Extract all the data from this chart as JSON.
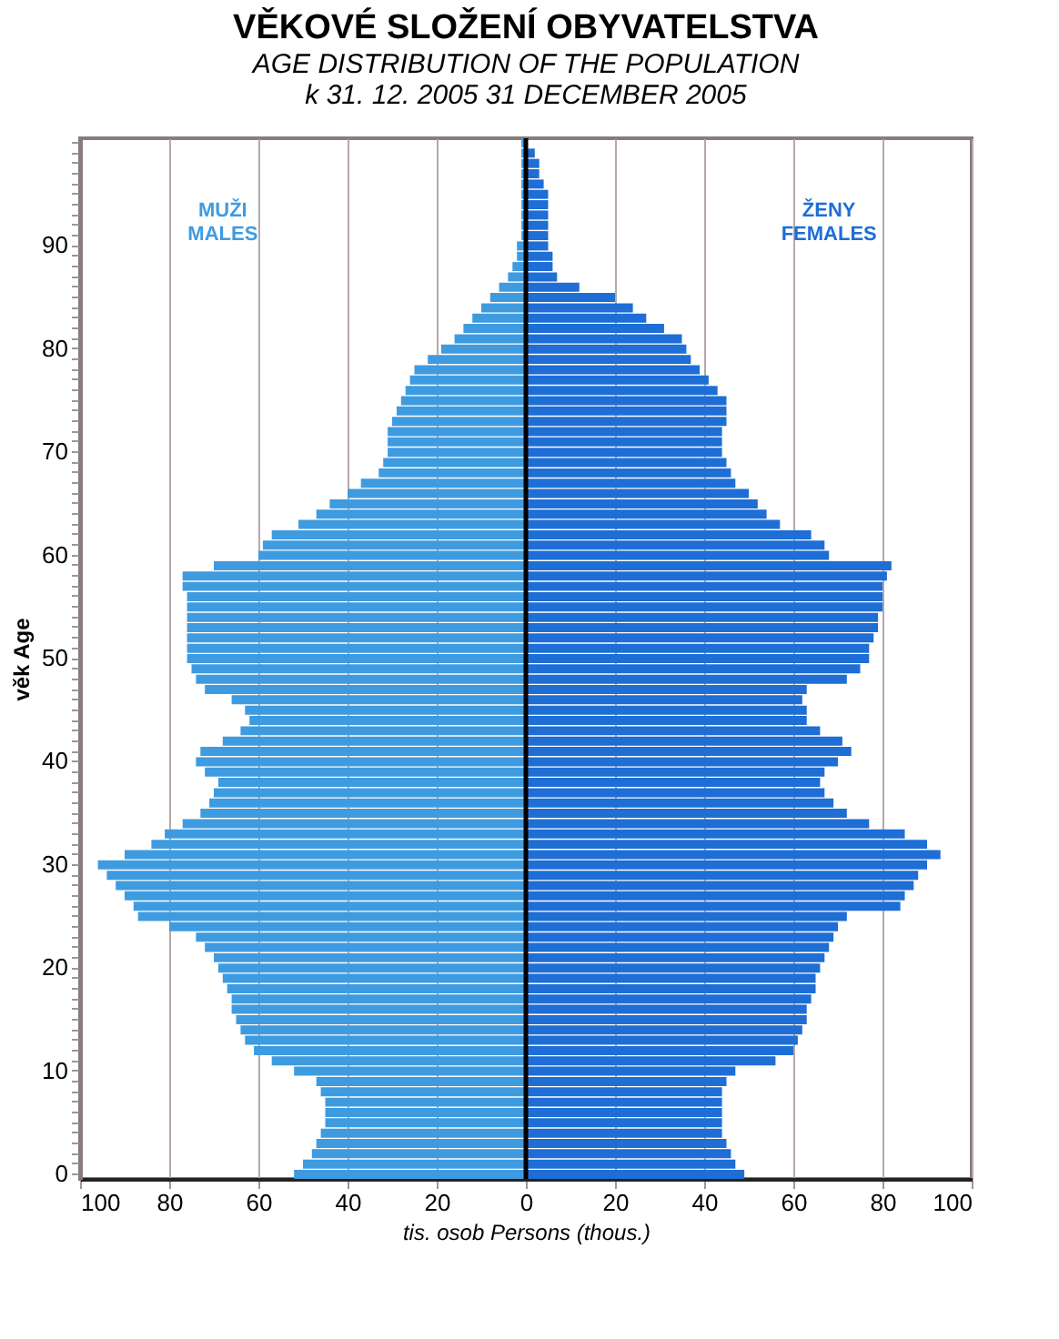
{
  "chart_data": {
    "type": "bar",
    "orientation": "horizontal",
    "title": "VĚKOVÉ SLOŽENÍ OBYVATELSTVA",
    "subtitle": "AGE DISTRIBUTION OF THE POPULATION\nk 31. 12. 2005      31 DECEMBER 2005",
    "xlabel": "tis. osob     Persons (thous.)",
    "ylabel": "věk     Age",
    "stacked": true,
    "categories": [
      null,
      null,
      null,
      null,
      null,
      null,
      null,
      null,
      null,
      null,
      "90",
      null,
      null,
      null,
      null,
      null,
      null,
      null,
      null,
      null,
      "80",
      null,
      null,
      null,
      null,
      null,
      null,
      null,
      null,
      null,
      "70",
      null,
      null,
      null,
      null,
      null,
      null,
      null,
      null,
      null,
      "60",
      null,
      null,
      null,
      null,
      null,
      null,
      null,
      null,
      null,
      "50",
      null,
      null,
      null,
      null,
      null,
      null,
      null,
      null,
      null,
      "40",
      null,
      null,
      null,
      null,
      null,
      null,
      null,
      null,
      null,
      "30",
      null,
      null,
      null,
      null,
      null,
      null,
      null,
      null,
      null,
      "20",
      null,
      null,
      null,
      null,
      null,
      null,
      null,
      null,
      null,
      "10",
      null,
      null,
      null,
      null,
      null,
      null,
      null,
      null,
      null,
      "0"
    ],
    "series": [
      {
        "name": "MUŽI\nMALES",
        "color": "#3f9be0",
        "values": [
          -1,
          -1,
          -1,
          -1,
          -1,
          -1,
          -1,
          -1,
          -1,
          -1,
          -2,
          -2,
          -3,
          -4,
          -6,
          -8,
          -10,
          -12,
          -14,
          -16,
          -19,
          -22,
          -25,
          -26,
          -27,
          -28,
          -29,
          -30,
          -31,
          -31,
          -31,
          -32,
          -33,
          -37,
          -40,
          -44,
          -47,
          -51,
          -57,
          -59,
          -60,
          -70,
          -77,
          -77,
          -76,
          -76,
          -76,
          -76,
          -76,
          -76,
          -76,
          -75,
          -74,
          -72,
          -66,
          -63,
          -62,
          -64,
          -68,
          -73,
          -74,
          -72,
          -69,
          -70,
          -71,
          -73,
          -77,
          -81,
          -84,
          -90,
          -96,
          -94,
          -92,
          -90,
          -88,
          -87,
          -80,
          -74,
          -72,
          -70,
          -69,
          -68,
          -67,
          -66,
          -66,
          -65,
          -64,
          -63,
          -61,
          -57,
          -52,
          -47,
          -46,
          -45,
          -45,
          -45,
          -46,
          -47,
          -48,
          -50,
          -52
        ]
      },
      {
        "name": "ŽENY\nFEMALES",
        "color": "#1e6ed6",
        "values": [
          null,
          2,
          3,
          3,
          4,
          5,
          5,
          5,
          5,
          5,
          5,
          6,
          6,
          7,
          12,
          20,
          24,
          27,
          31,
          35,
          36,
          37,
          39,
          41,
          43,
          45,
          45,
          45,
          44,
          44,
          44,
          45,
          46,
          47,
          50,
          52,
          54,
          57,
          64,
          67,
          68,
          82,
          81,
          80,
          80,
          80,
          79,
          79,
          78,
          77,
          77,
          75,
          72,
          63,
          62,
          63,
          63,
          66,
          71,
          73,
          70,
          67,
          66,
          67,
          69,
          72,
          77,
          85,
          90,
          93,
          90,
          88,
          87,
          85,
          84,
          72,
          70,
          69,
          68,
          67,
          66,
          65,
          65,
          64,
          63,
          63,
          62,
          61,
          60,
          56,
          47,
          45,
          44,
          44,
          44,
          44,
          44,
          45,
          46,
          47,
          49
        ]
      }
    ],
    "xlim": [
      -100,
      100
    ],
    "xticks": [
      {
        "value": -100,
        "label": "100"
      },
      {
        "value": -80,
        "label": "80"
      },
      {
        "value": -60,
        "label": "60"
      },
      {
        "value": -40,
        "label": "40"
      },
      {
        "value": -20,
        "label": "20"
      },
      0,
      20,
      40,
      60,
      80,
      100
    ],
    "ref_lines": [
      {
        "axis": "x",
        "value": 0
      }
    ],
    "grid": "x",
    "legend": "top"
  }
}
